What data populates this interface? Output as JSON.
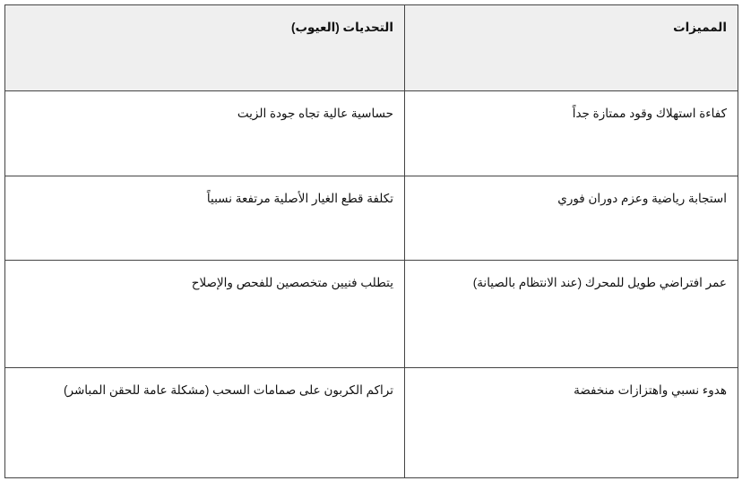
{
  "table": {
    "headers": [
      "المميزات",
      "التحديات (العيوب)"
    ],
    "rows": [
      [
        "كفاءة استهلاك وقود ممتازة جداً",
        "حساسية عالية تجاه جودة الزيت"
      ],
      [
        "استجابة رياضية وعزم دوران فوري",
        "تكلفة قطع الغيار الأصلية مرتفعة نسبياً"
      ],
      [
        "عمر افتراضي طويل للمحرك (عند الانتظام بالصيانة)",
        "يتطلب فنيين متخصصين للفحص والإصلاح"
      ],
      [
        "هدوء نسبي واهتزازات منخفضة",
        "تراكم الكربون على صمامات السحب (مشكلة عامة للحقن المباشر)"
      ]
    ]
  },
  "colors": {
    "header_bg": "#efefef",
    "border": "#444444"
  }
}
